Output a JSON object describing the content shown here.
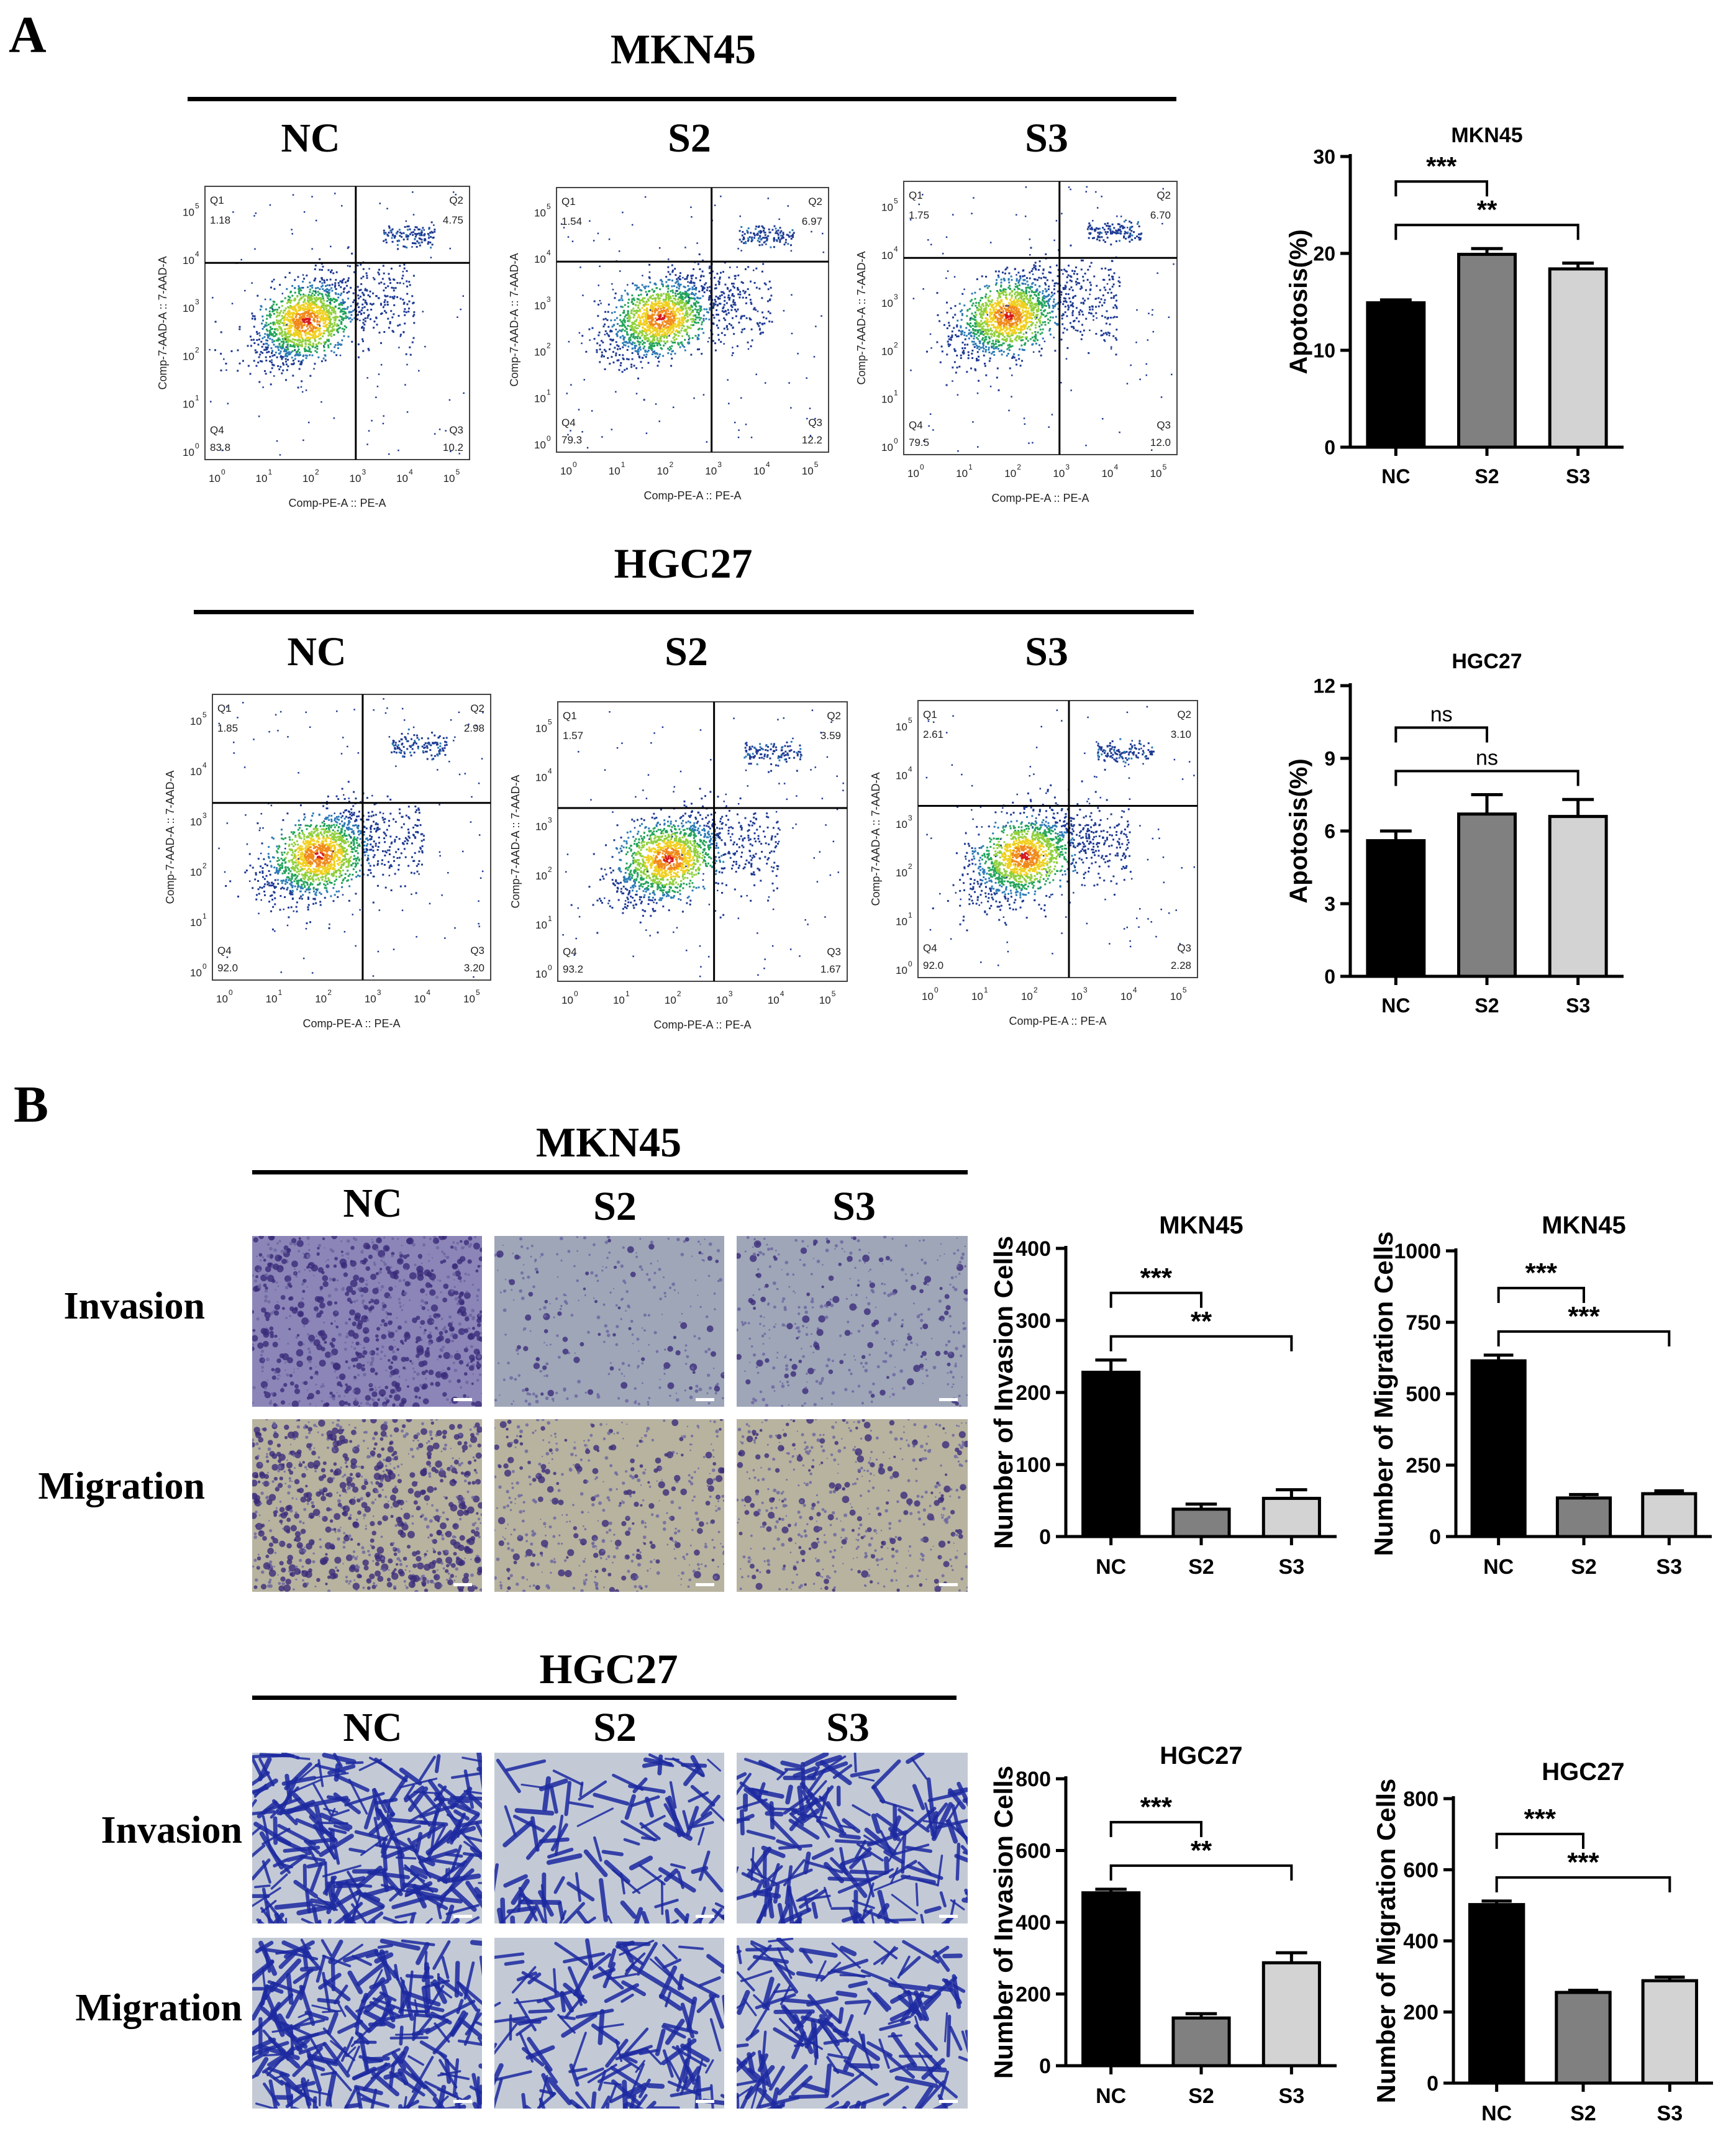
{
  "panels": {
    "a": "A",
    "b": "B"
  },
  "flow": {
    "groups": [
      "NC",
      "S2",
      "S3"
    ],
    "x_axis_label": "Comp-PE-A :: PE-A",
    "y_axis_label": "Comp-7-AAD-A :: 7-AAD-A",
    "tick_labels": [
      "10",
      "10",
      "10",
      "10",
      "10",
      "10"
    ],
    "tick_exps": [
      "0",
      "1",
      "2",
      "3",
      "4",
      "5"
    ],
    "quadrant_names": [
      "Q1",
      "Q2",
      "Q3",
      "Q4"
    ],
    "cell_lines": [
      {
        "name": "MKN45",
        "plots": [
          {
            "q1": "1.18",
            "q2": "4.75",
            "q3": "10.2",
            "q4": "83.8"
          },
          {
            "q1": "1.54",
            "q2": "6.97",
            "q3": "12.2",
            "q4": "79.3"
          },
          {
            "q1": "1.75",
            "q2": "6.70",
            "q3": "12.0",
            "q4": "79.5"
          }
        ]
      },
      {
        "name": "HGC27",
        "plots": [
          {
            "q1": "1.85",
            "q2": "2.98",
            "q3": "3.20",
            "q4": "92.0"
          },
          {
            "q1": "1.57",
            "q2": "3.59",
            "q3": "1.67",
            "q4": "93.2"
          },
          {
            "q1": "2.61",
            "q2": "3.10",
            "q3": "2.28",
            "q4": "92.0"
          }
        ]
      }
    ]
  },
  "transwell": {
    "groups": [
      "NC",
      "S2",
      "S3"
    ],
    "rows": [
      "Invasion",
      "Migration"
    ],
    "cell_lines": [
      "MKN45",
      "HGC27"
    ]
  },
  "chart_data": [
    {
      "id": "apo-mkn45",
      "type": "bar",
      "title": "MKN45",
      "ylabel": "Apotosis(%)",
      "categories": [
        "NC",
        "S2",
        "S3"
      ],
      "values": [
        14.9,
        19.9,
        18.4
      ],
      "errors": [
        0.3,
        0.6,
        0.6
      ],
      "ylim": [
        0,
        30
      ],
      "yticks": [
        0,
        10,
        20,
        30
      ],
      "colors": [
        "#000000",
        "#808080",
        "#d3d3d3"
      ],
      "significance": [
        {
          "from": 0,
          "to": 1,
          "label": "***"
        },
        {
          "from": 0,
          "to": 2,
          "label": "**"
        }
      ]
    },
    {
      "id": "apo-hgc27",
      "type": "bar",
      "title": "HGC27",
      "ylabel": "Apotosis(%)",
      "categories": [
        "NC",
        "S2",
        "S3"
      ],
      "values": [
        5.6,
        6.7,
        6.6
      ],
      "errors": [
        0.4,
        0.8,
        0.7
      ],
      "ylim": [
        0,
        12
      ],
      "yticks": [
        0,
        3,
        6,
        9,
        12
      ],
      "colors": [
        "#000000",
        "#808080",
        "#d3d3d3"
      ],
      "significance": [
        {
          "from": 0,
          "to": 1,
          "label": "ns"
        },
        {
          "from": 0,
          "to": 2,
          "label": "ns"
        }
      ]
    },
    {
      "id": "inv-mkn45",
      "type": "bar",
      "title": "MKN45",
      "ylabel": "Number of Invasion Cells",
      "categories": [
        "NC",
        "S2",
        "S3"
      ],
      "values": [
        228,
        38,
        53
      ],
      "errors": [
        17,
        7,
        12
      ],
      "ylim": [
        0,
        400
      ],
      "yticks": [
        0,
        100,
        200,
        300,
        400
      ],
      "colors": [
        "#000000",
        "#808080",
        "#d3d3d3"
      ],
      "significance": [
        {
          "from": 0,
          "to": 1,
          "label": "***"
        },
        {
          "from": 0,
          "to": 2,
          "label": "**"
        }
      ]
    },
    {
      "id": "mig-mkn45",
      "type": "bar",
      "title": "MKN45",
      "ylabel": "Number of Migration Cells",
      "categories": [
        "NC",
        "S2",
        "S3"
      ],
      "values": [
        615,
        135,
        150
      ],
      "errors": [
        20,
        12,
        10
      ],
      "ylim": [
        0,
        1000
      ],
      "yticks": [
        0,
        250,
        500,
        750,
        1000
      ],
      "colors": [
        "#000000",
        "#808080",
        "#d3d3d3"
      ],
      "significance": [
        {
          "from": 0,
          "to": 1,
          "label": "***"
        },
        {
          "from": 0,
          "to": 2,
          "label": "***"
        }
      ]
    },
    {
      "id": "inv-hgc27",
      "type": "bar",
      "title": "HGC27",
      "ylabel": "Number of Invasion Cells",
      "categories": [
        "NC",
        "S2",
        "S3"
      ],
      "values": [
        482,
        133,
        287
      ],
      "errors": [
        10,
        12,
        28
      ],
      "ylim": [
        0,
        800
      ],
      "yticks": [
        0,
        200,
        400,
        600,
        800
      ],
      "colors": [
        "#000000",
        "#808080",
        "#d3d3d3"
      ],
      "significance": [
        {
          "from": 0,
          "to": 1,
          "label": "***"
        },
        {
          "from": 0,
          "to": 2,
          "label": "**"
        }
      ]
    },
    {
      "id": "mig-hgc27",
      "type": "bar",
      "title": "HGC27",
      "ylabel": "Number of Migration Cells",
      "categories": [
        "NC",
        "S2",
        "S3"
      ],
      "values": [
        502,
        255,
        288
      ],
      "errors": [
        10,
        6,
        10
      ],
      "ylim": [
        0,
        800
      ],
      "yticks": [
        0,
        200,
        400,
        600,
        800
      ],
      "colors": [
        "#000000",
        "#808080",
        "#d3d3d3"
      ],
      "significance": [
        {
          "from": 0,
          "to": 1,
          "label": "***"
        },
        {
          "from": 0,
          "to": 2,
          "label": "***"
        }
      ]
    }
  ]
}
